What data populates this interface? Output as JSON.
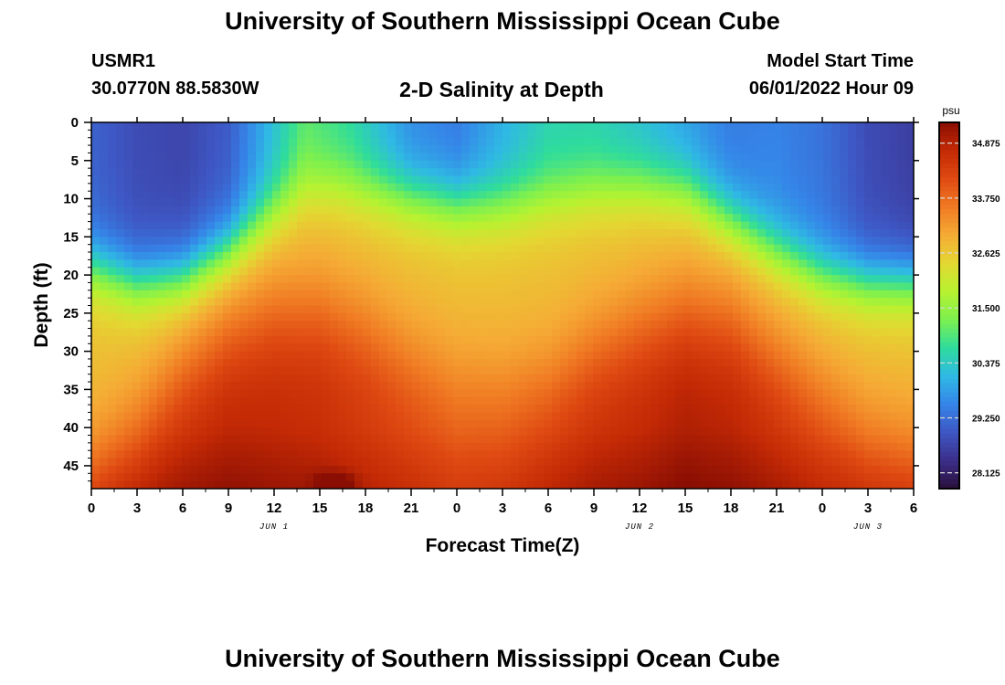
{
  "header": {
    "title": "University of Southern Mississippi Ocean Cube",
    "station": "USMR1",
    "coords": "30.0770N  88.5830W",
    "subtitle": "2-D Salinity at Depth",
    "model_label": "Model Start Time",
    "model_time": "06/01/2022 Hour 09",
    "footer_title": "University of Southern Mississippi Ocean Cube"
  },
  "chart_data": {
    "type": "heatmap",
    "title": "2-D Salinity at Depth",
    "xlabel": "Forecast Time(Z)",
    "ylabel": "Depth (ft)",
    "x_ticks": [
      "0",
      "3",
      "6",
      "9",
      "12",
      "15",
      "18",
      "21",
      "0",
      "3",
      "6",
      "9",
      "12",
      "15",
      "18",
      "21",
      "0",
      "3",
      "6"
    ],
    "x_range_hours": [
      0,
      54
    ],
    "day_labels": [
      {
        "label": "JUN 1",
        "hour": 12
      },
      {
        "label": "JUN 2",
        "hour": 36
      },
      {
        "label": "JUN 3",
        "hour": 51
      }
    ],
    "y_ticks": [
      "0",
      "5",
      "10",
      "15",
      "20",
      "25",
      "30",
      "35",
      "40",
      "45"
    ],
    "y_range_ft": [
      0,
      48
    ],
    "colorbar": {
      "unit": "psu",
      "min": 27.8,
      "max": 35.3,
      "ticks": [
        "34.875",
        "33.750",
        "32.625",
        "31.500",
        "30.375",
        "29.250",
        "28.125"
      ],
      "colors": [
        "#2a0f3a",
        "#3b2f8a",
        "#3e57c4",
        "#3585e8",
        "#2fb9e4",
        "#2fdc9c",
        "#7df04e",
        "#b7f230",
        "#e3d832",
        "#f5ab35",
        "#f07a23",
        "#df4a12",
        "#c42a05",
        "#8a0e03"
      ]
    },
    "surface_salinity_by_hour": [
      [
        0,
        29.1
      ],
      [
        3,
        28.8
      ],
      [
        6,
        28.7
      ],
      [
        9,
        29.0
      ],
      [
        12,
        30.2
      ],
      [
        14,
        31.0
      ],
      [
        17,
        30.6
      ],
      [
        21,
        29.6
      ],
      [
        24,
        29.4
      ],
      [
        27,
        30.0
      ],
      [
        30,
        30.5
      ],
      [
        33,
        30.5
      ],
      [
        36,
        30.2
      ],
      [
        39,
        29.8
      ],
      [
        42,
        29.4
      ],
      [
        45,
        29.5
      ],
      [
        48,
        29.3
      ],
      [
        51,
        28.8
      ],
      [
        54,
        28.6
      ]
    ],
    "bottom_salinity_by_hour": [
      [
        0,
        34.9
      ],
      [
        3,
        35.0
      ],
      [
        6,
        35.1
      ],
      [
        9,
        35.2
      ],
      [
        12,
        35.1
      ],
      [
        15,
        35.0
      ],
      [
        18,
        34.8
      ],
      [
        21,
        34.6
      ],
      [
        24,
        34.4
      ],
      [
        27,
        34.5
      ],
      [
        30,
        34.8
      ],
      [
        33,
        35.0
      ],
      [
        36,
        35.1
      ],
      [
        39,
        35.3
      ],
      [
        42,
        35.2
      ],
      [
        45,
        35.0
      ],
      [
        48,
        34.8
      ],
      [
        51,
        34.8
      ],
      [
        54,
        34.8
      ]
    ],
    "halocline_depth_ft_by_hour": [
      [
        0,
        19
      ],
      [
        3,
        21
      ],
      [
        6,
        20.5
      ],
      [
        9,
        17
      ],
      [
        12,
        12
      ],
      [
        14,
        9
      ],
      [
        16,
        8.5
      ],
      [
        18,
        9
      ],
      [
        21,
        10
      ],
      [
        24,
        11
      ],
      [
        27,
        11
      ],
      [
        30,
        10
      ],
      [
        33,
        9
      ],
      [
        36,
        8.5
      ],
      [
        39,
        9
      ],
      [
        42,
        13
      ],
      [
        45,
        17
      ],
      [
        48,
        20
      ],
      [
        51,
        21
      ],
      [
        54,
        21
      ]
    ],
    "deep_layer_top_ft_by_hour": [
      [
        0,
        45
      ],
      [
        3,
        40
      ],
      [
        6,
        33
      ],
      [
        9,
        28
      ],
      [
        12,
        25
      ],
      [
        15,
        24.5
      ],
      [
        18,
        27
      ],
      [
        21,
        31
      ],
      [
        24,
        34
      ],
      [
        27,
        35
      ],
      [
        30,
        34
      ],
      [
        33,
        30
      ],
      [
        36,
        27
      ],
      [
        39,
        25
      ],
      [
        42,
        26
      ],
      [
        45,
        31
      ],
      [
        48,
        36
      ],
      [
        51,
        41
      ],
      [
        54,
        43
      ]
    ]
  }
}
